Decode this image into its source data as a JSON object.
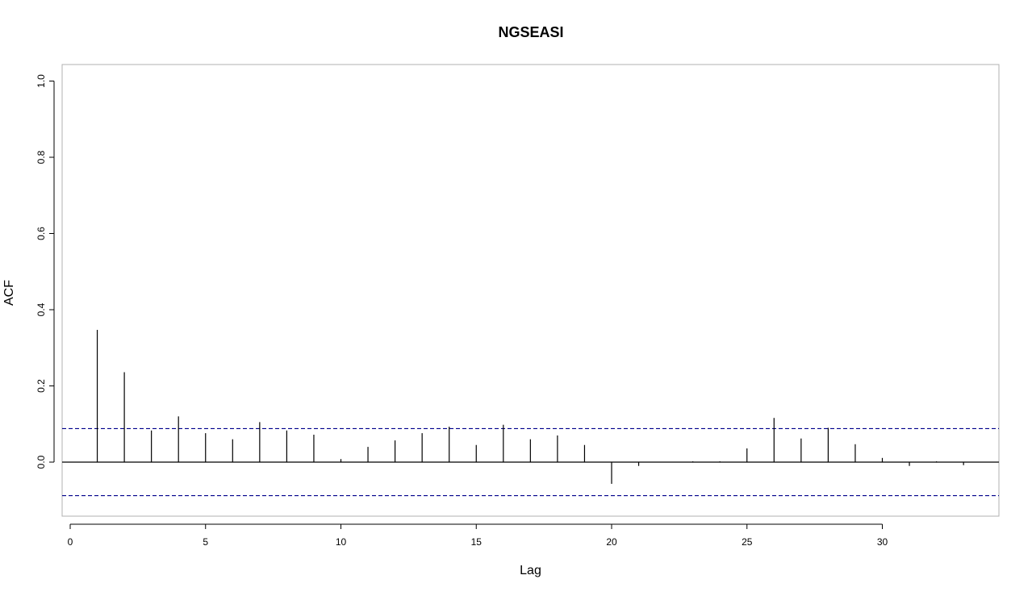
{
  "chart_data": {
    "type": "bar",
    "title": "NGSEASI",
    "xlabel": "Lag",
    "ylabel": "ACF",
    "xlim": [
      0,
      34
    ],
    "ylim": [
      -0.14,
      1.02
    ],
    "x_ticks": [
      0,
      5,
      10,
      15,
      20,
      25,
      30
    ],
    "y_ticks": [
      0.0,
      0.2,
      0.4,
      0.6,
      0.8,
      1.0
    ],
    "x_tick_labels": [
      "0",
      "5",
      "10",
      "15",
      "20",
      "25",
      "30"
    ],
    "y_tick_labels": [
      "0.0",
      "0.2",
      "0.4",
      "0.6",
      "0.8",
      "1.0"
    ],
    "confidence_bound": 0.088,
    "lags": [
      1,
      2,
      3,
      4,
      5,
      6,
      7,
      8,
      9,
      10,
      11,
      12,
      13,
      14,
      15,
      16,
      17,
      18,
      19,
      20,
      21,
      22,
      23,
      24,
      25,
      26,
      27,
      28,
      29,
      30,
      31,
      32,
      33
    ],
    "values": [
      0.347,
      0.236,
      0.083,
      0.12,
      0.076,
      0.06,
      0.105,
      0.083,
      0.072,
      0.008,
      0.04,
      0.057,
      0.076,
      0.093,
      0.045,
      0.098,
      0.06,
      0.07,
      0.045,
      -0.057,
      -0.01,
      0.0,
      0.002,
      0.002,
      0.036,
      0.116,
      0.062,
      0.09,
      0.047,
      0.011,
      -0.01,
      0.002,
      -0.008
    ],
    "grid": false,
    "colors": {
      "bars": "#000000",
      "confidence": "#00008B",
      "frame": "#b0b0b0"
    }
  }
}
